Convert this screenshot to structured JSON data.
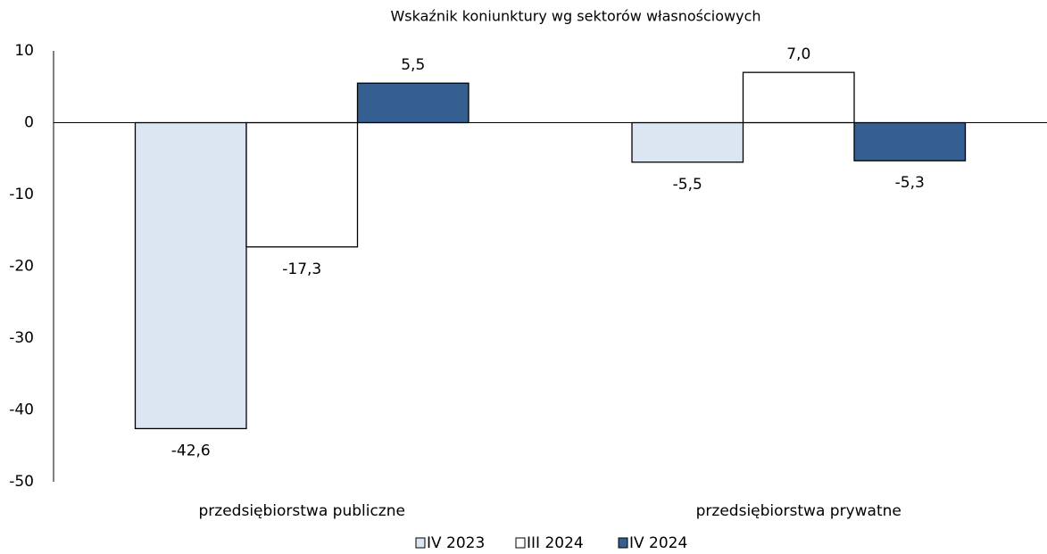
{
  "chart_data": {
    "type": "bar",
    "title": "Wskaźnik koniunktury wg sektorów własnościowych",
    "categories": [
      "przedsiębiorstwa publiczne",
      "przedsiębiorstwa prywatne"
    ],
    "series": [
      {
        "name": "IV 2023",
        "color": "#dce6f2",
        "values": [
          -42.6,
          -5.5
        ],
        "value_labels": [
          "-42,6",
          "-5,5"
        ]
      },
      {
        "name": "III 2024",
        "color": "#ffffff",
        "values": [
          -17.3,
          7.0
        ],
        "value_labels": [
          "-17,3",
          "7,0"
        ]
      },
      {
        "name": "IV 2024",
        "color": "#355e91",
        "values": [
          5.5,
          -5.3
        ],
        "value_labels": [
          "5,5",
          "-5,3"
        ]
      }
    ],
    "ylim": [
      -50,
      10
    ],
    "yticks": [
      -50,
      -40,
      -30,
      -20,
      -10,
      0,
      10
    ],
    "grid": false,
    "legend": "bottom"
  }
}
